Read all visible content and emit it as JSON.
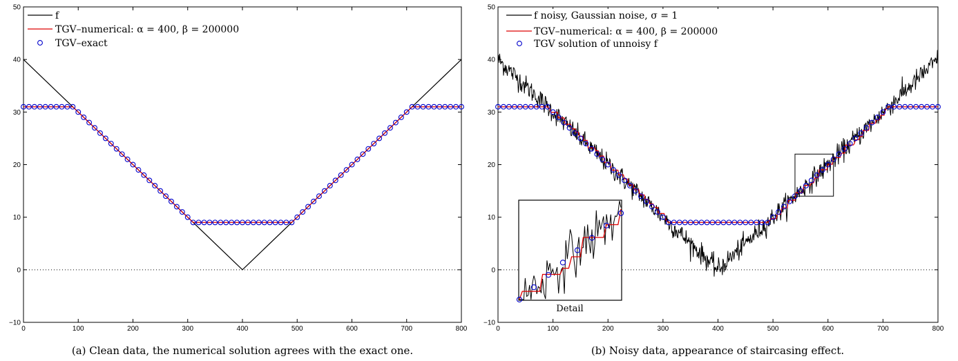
{
  "chart_data": [
    {
      "type": "line",
      "caption": "(a) Clean data, the numerical solution agrees with the exact one.",
      "xlim": [
        0,
        800
      ],
      "ylim": [
        -10,
        50
      ],
      "xticks": [
        "0",
        "100",
        "200",
        "300",
        "400",
        "500",
        "600",
        "700",
        "800"
      ],
      "yticks": [
        "−10",
        "0",
        "10",
        "20",
        "30",
        "40",
        "50"
      ],
      "zero_line": true,
      "legend_position": "top-left",
      "legend": [
        {
          "label": "f",
          "style": "line",
          "color": "#000000"
        },
        {
          "label": "TGV–numerical: α = 400, β = 200000",
          "style": "line",
          "color": "#dd0000"
        },
        {
          "label": "TGV–exact",
          "style": "marker",
          "color": "#0000cc"
        }
      ],
      "series": [
        {
          "name": "f",
          "x": [
            0,
            400,
            800
          ],
          "y": [
            40,
            0,
            40
          ]
        },
        {
          "name": "TGV–numerical: α = 400, β = 200000",
          "x": [
            0,
            90,
            310,
            490,
            710,
            800
          ],
          "y": [
            31,
            31,
            9,
            9,
            31,
            31
          ]
        },
        {
          "name": "TGV–exact",
          "x_start": 0,
          "x_step": 10,
          "points": 81,
          "profile_x": [
            0,
            90,
            310,
            490,
            710,
            800
          ],
          "profile_y": [
            31,
            31,
            9,
            9,
            31,
            31
          ]
        }
      ]
    },
    {
      "type": "line",
      "caption": "(b) Noisy data, appearance of staircasing effect.",
      "xlim": [
        0,
        800
      ],
      "ylim": [
        -10,
        50
      ],
      "xticks": [
        "0",
        "100",
        "200",
        "300",
        "400",
        "500",
        "600",
        "700",
        "800"
      ],
      "yticks": [
        "−10",
        "0",
        "10",
        "20",
        "30",
        "40",
        "50"
      ],
      "zero_line": true,
      "legend_position": "top-left",
      "legend": [
        {
          "label": "f noisy, Gaussian noise, σ = 1",
          "style": "line",
          "color": "#000000"
        },
        {
          "label": "TGV–numerical: α = 400, β = 200000",
          "style": "line",
          "color": "#dd0000"
        },
        {
          "label": "TGV solution of unnoisy f",
          "style": "marker",
          "color": "#0000cc"
        }
      ],
      "noise_sigma": 1,
      "detail_window": {
        "x": [
          540,
          610
        ],
        "y": [
          14,
          22
        ]
      },
      "inset_label": "Detail",
      "series": [
        {
          "name": "f noisy, Gaussian noise, σ = 1",
          "x": [
            0,
            400,
            800
          ],
          "y": [
            40,
            0,
            40
          ]
        },
        {
          "name": "TGV–numerical: α = 400, β = 200000",
          "x": [
            0,
            90,
            310,
            490,
            710,
            800
          ],
          "y": [
            31,
            31,
            9,
            9,
            31,
            31
          ]
        },
        {
          "name": "TGV solution of unnoisy f",
          "x_start": 0,
          "x_step": 10,
          "points": 81,
          "profile_x": [
            0,
            90,
            310,
            490,
            710,
            800
          ],
          "profile_y": [
            31,
            31,
            9,
            9,
            31,
            31
          ]
        }
      ]
    }
  ]
}
